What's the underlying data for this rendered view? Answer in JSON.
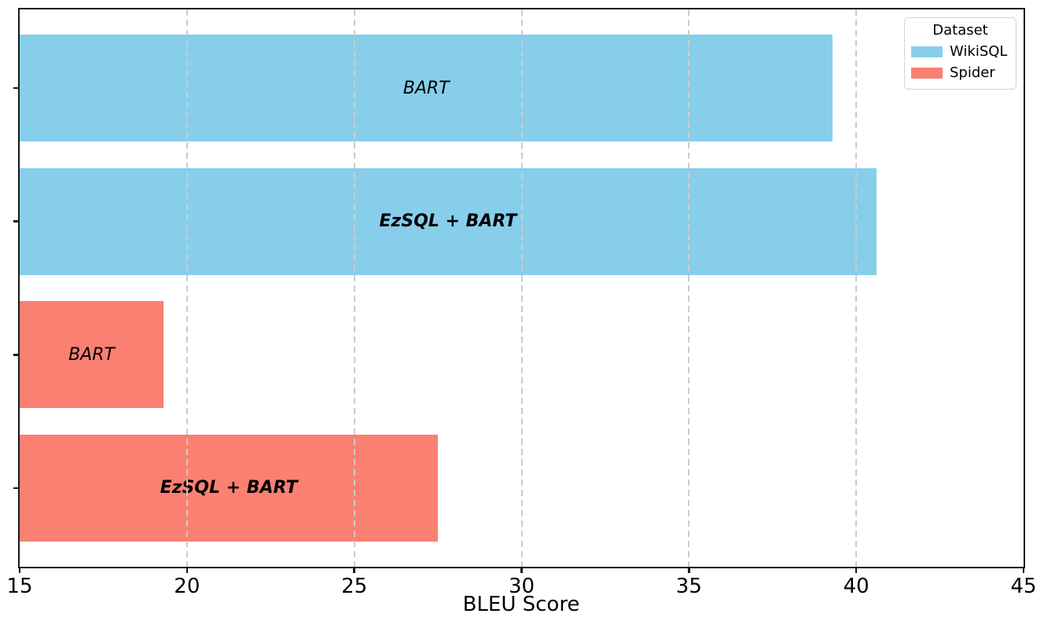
{
  "chart_data": {
    "type": "bar",
    "orientation": "horizontal",
    "title": "",
    "xlabel": "BLEU Score",
    "ylabel": "",
    "xlim": [
      15,
      45
    ],
    "xticks": [
      15,
      20,
      25,
      30,
      35,
      40,
      45
    ],
    "grid": {
      "axis": "x",
      "style": "dashed",
      "color": "#cccccc",
      "above_bars": true
    },
    "categories": [
      "BART (WikiSQL)",
      "EzSQL + BART (WikiSQL)",
      "BART (Spider)",
      "EzSQL + BART (Spider)"
    ],
    "bars": [
      {
        "label": "BART",
        "dataset": "WikiSQL",
        "value": 39.3,
        "color": "#87CEEB",
        "bold": false
      },
      {
        "label": "EzSQL + BART",
        "dataset": "WikiSQL",
        "value": 40.6,
        "color": "#87CEEB",
        "bold": true
      },
      {
        "label": "BART",
        "dataset": "Spider",
        "value": 19.3,
        "color": "#FA8072",
        "bold": false
      },
      {
        "label": "EzSQL + BART",
        "dataset": "Spider",
        "value": 27.5,
        "color": "#FA8072",
        "bold": true
      }
    ],
    "series": [
      {
        "name": "WikiSQL",
        "color": "#87CEEB",
        "points": [
          {
            "model": "BART",
            "value": 39.3
          },
          {
            "model": "EzSQL + BART",
            "value": 40.6
          }
        ]
      },
      {
        "name": "Spider",
        "color": "#FA8072",
        "points": [
          {
            "model": "BART",
            "value": 19.3
          },
          {
            "model": "EzSQL + BART",
            "value": 27.5
          }
        ]
      }
    ],
    "legend": {
      "title": "Dataset",
      "position": "upper-right",
      "entries": [
        {
          "label": "WikiSQL",
          "color": "#87CEEB"
        },
        {
          "label": "Spider",
          "color": "#FA8072"
        }
      ]
    }
  }
}
